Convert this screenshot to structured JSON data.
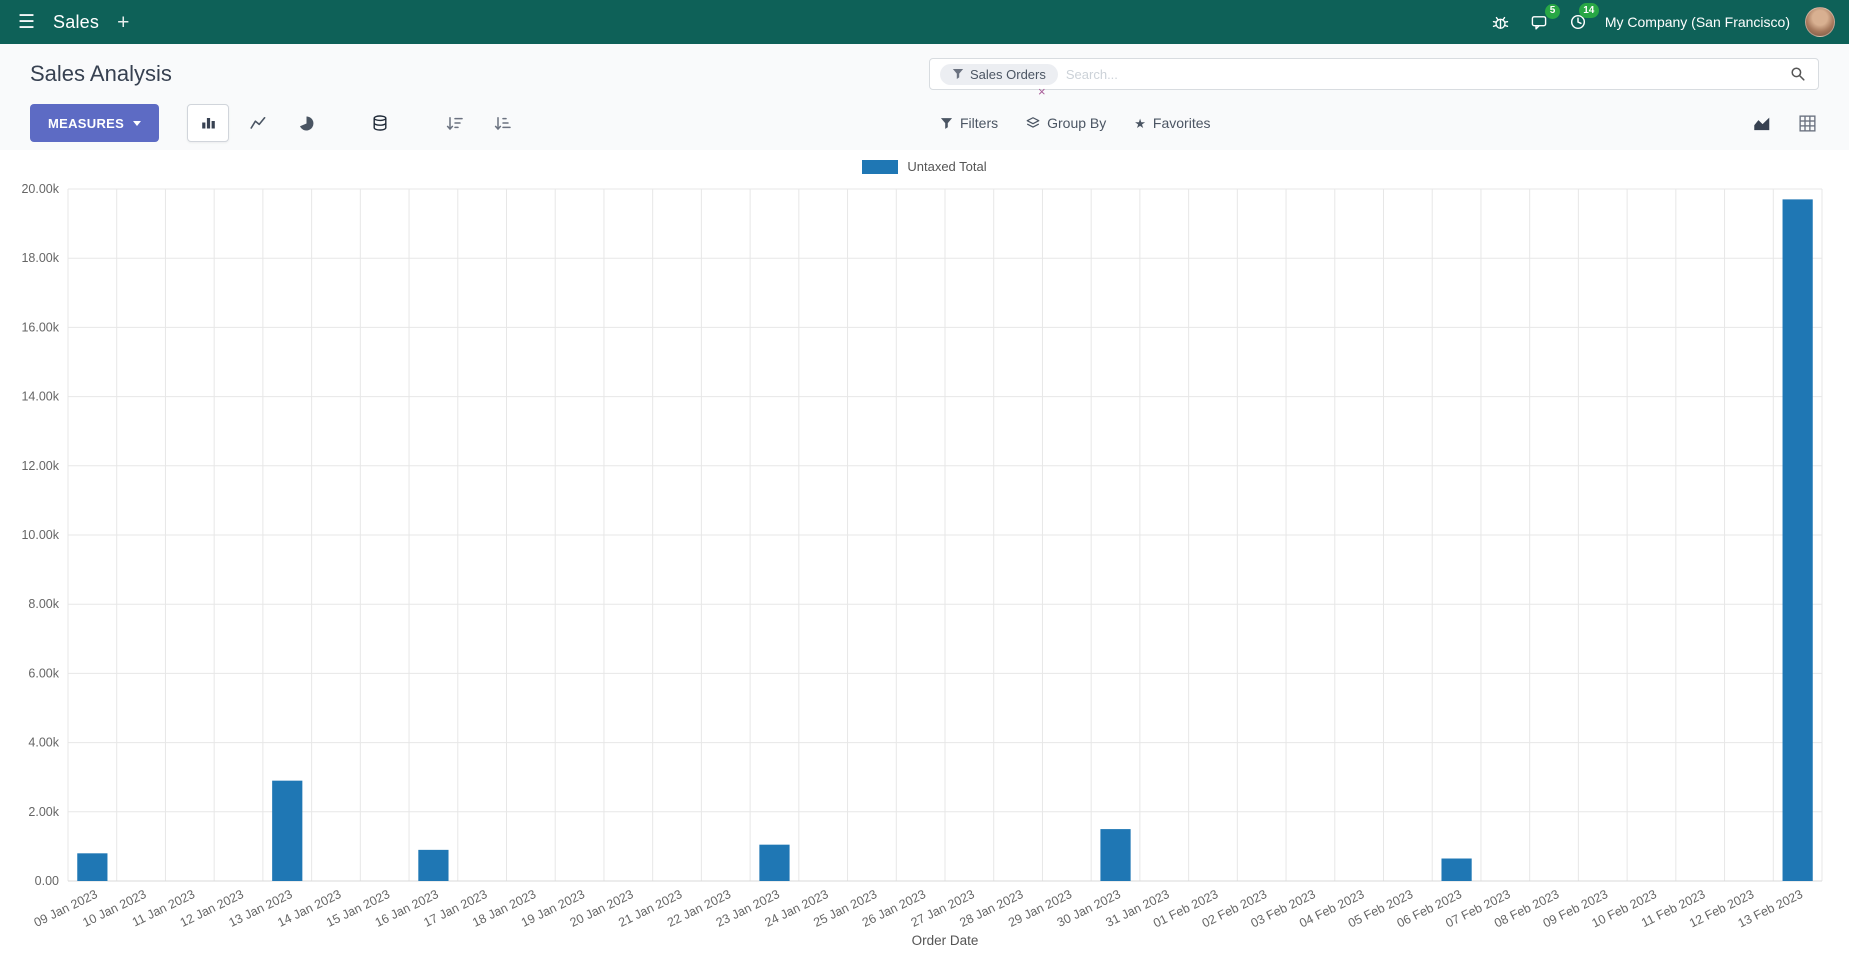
{
  "navbar": {
    "app_name": "Sales",
    "company": "My Company (San Francisco)",
    "badge_messages": "5",
    "badge_activities": "14"
  },
  "control_panel": {
    "breadcrumb": "Sales Analysis",
    "measures_label": "MEASURES",
    "search": {
      "facet": "Sales Orders",
      "placeholder": "Search...",
      "facet_remove": "×"
    },
    "filters_label": "Filters",
    "group_by_label": "Group By",
    "favorites_label": "Favorites"
  },
  "icons": {
    "hamburger": "☰",
    "plus": "+",
    "star": "★",
    "close": "×"
  },
  "colors": {
    "navbar_bg": "#0e6158",
    "primary_button": "#5d6bc4",
    "badge_green": "#28a745",
    "bar_blue": "#1f77b4"
  },
  "chart_data": {
    "type": "bar",
    "title": "",
    "xlabel": "Order Date",
    "ylabel": "",
    "ylim": [
      0,
      20000
    ],
    "ytick_step": 2000,
    "ytick_labels": [
      "0.00",
      "2.00k",
      "4.00k",
      "6.00k",
      "8.00k",
      "10.00k",
      "12.00k",
      "14.00k",
      "16.00k",
      "18.00k",
      "20.00k"
    ],
    "grid": true,
    "legend_position": "top",
    "categories": [
      "09 Jan 2023",
      "10 Jan 2023",
      "11 Jan 2023",
      "12 Jan 2023",
      "13 Jan 2023",
      "14 Jan 2023",
      "15 Jan 2023",
      "16 Jan 2023",
      "17 Jan 2023",
      "18 Jan 2023",
      "19 Jan 2023",
      "20 Jan 2023",
      "21 Jan 2023",
      "22 Jan 2023",
      "23 Jan 2023",
      "24 Jan 2023",
      "25 Jan 2023",
      "26 Jan 2023",
      "27 Jan 2023",
      "28 Jan 2023",
      "29 Jan 2023",
      "30 Jan 2023",
      "31 Jan 2023",
      "01 Feb 2023",
      "02 Feb 2023",
      "03 Feb 2023",
      "04 Feb 2023",
      "05 Feb 2023",
      "06 Feb 2023",
      "07 Feb 2023",
      "08 Feb 2023",
      "09 Feb 2023",
      "10 Feb 2023",
      "11 Feb 2023",
      "12 Feb 2023",
      "13 Feb 2023"
    ],
    "series": [
      {
        "name": "Untaxed Total",
        "color": "#1f77b4",
        "values": [
          800,
          0,
          0,
          0,
          2900,
          0,
          0,
          900,
          0,
          0,
          0,
          0,
          0,
          0,
          1050,
          0,
          0,
          0,
          0,
          0,
          0,
          1500,
          0,
          0,
          0,
          0,
          0,
          0,
          650,
          0,
          0,
          0,
          0,
          0,
          0,
          19700
        ]
      }
    ]
  }
}
